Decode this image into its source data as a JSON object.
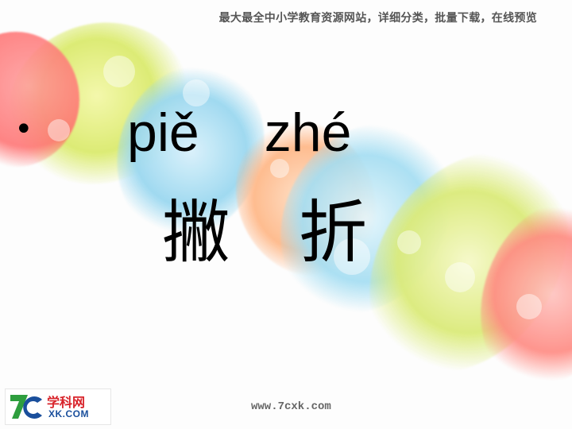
{
  "banner": {
    "text": "最大最全中小学教育资源网站，详细分类，批量下载，在线预览"
  },
  "bullet": {
    "glyph": "•"
  },
  "lesson": {
    "pinyin": [
      "piě",
      "zhé"
    ],
    "hanzi": [
      "撇",
      "折"
    ]
  },
  "logo": {
    "mark": "7c",
    "cn": "学科网",
    "en": "XK.COM"
  },
  "footer": {
    "url": "www.7cxk.com"
  },
  "colors": {
    "logo_red": "#d8232a",
    "logo_blue": "#1a4f9c",
    "logo_green": "#2e9e3e"
  }
}
